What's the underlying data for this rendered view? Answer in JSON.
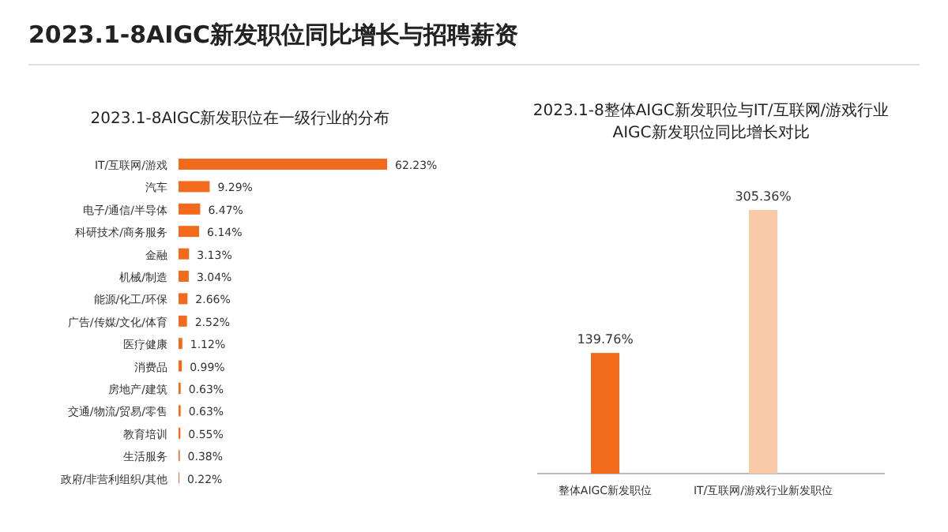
{
  "chart_data": [
    {
      "type": "other",
      "title": "2023.1-8AIGC新发职位同比增长与招聘薪资"
    },
    {
      "type": "bar",
      "orientation": "horizontal",
      "title": "2023.1-8AIGC新发职位在一级行业的分布",
      "color": "#f26b1d",
      "categories": [
        "IT/互联网/游戏",
        "汽车",
        "电子/通信/半导体",
        "科研技术/商务服务",
        "金融",
        "机械/制造",
        "能源/化工/环保",
        "广告/传媒/文化/体育",
        "医疗健康",
        "消费品",
        "房地产/建筑",
        "交通/物流/贸易/零售",
        "教育培训",
        "生活服务",
        "政府/非营利组织/其他"
      ],
      "values": [
        62.23,
        9.29,
        6.47,
        6.14,
        3.13,
        3.04,
        2.66,
        2.52,
        1.12,
        0.99,
        0.63,
        0.63,
        0.55,
        0.38,
        0.22
      ],
      "value_labels": [
        "62.23%",
        "9.29%",
        "6.47%",
        "6.14%",
        "3.13%",
        "3.04%",
        "2.66%",
        "2.52%",
        "1.12%",
        "0.99%",
        "0.63%",
        "0.63%",
        "0.55%",
        "0.38%",
        "0.22%"
      ]
    },
    {
      "type": "bar",
      "title": "2023.1-8整体AIGC新发职位与IT/互联网/游戏行业AIGC新发职位同比增长对比",
      "categories": [
        "整体AIGC新发职位",
        "IT/互联网/游戏行业新发职位"
      ],
      "values": [
        139.76,
        305.36
      ],
      "colors": [
        "#f26b1d",
        "#f9c9a8"
      ],
      "value_labels": [
        "139.76%",
        "305.36%"
      ]
    }
  ]
}
